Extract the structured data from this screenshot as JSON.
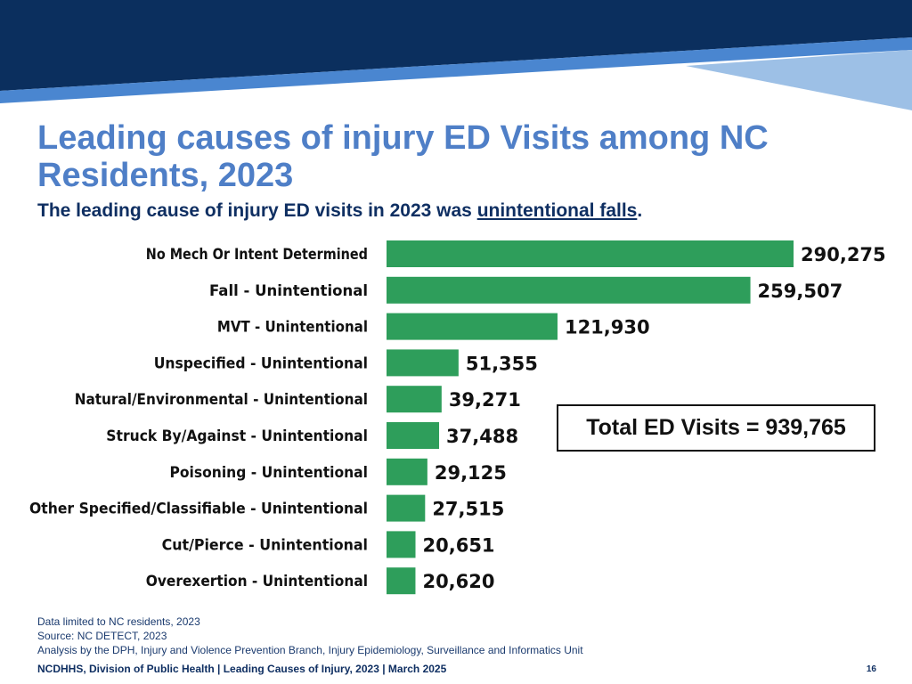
{
  "slide": {
    "title": "Leading causes of injury ED Visits among NC Residents, 2023",
    "subtitle_prefix": "The leading cause of injury ED visits in 2023 was ",
    "subtitle_emphasis": "unintentional falls",
    "subtitle_suffix": ".",
    "total_box": "Total ED Visits = 939,765",
    "notes": [
      "Data limited to NC residents, 2023",
      "Source: NC DETECT, 2023",
      "Analysis by the DPH, Injury and Violence Prevention Branch, Injury Epidemiology, Surveillance and Informatics Unit"
    ],
    "footer": "NCDHHS, Division of Public Health | Leading Causes of Injury, 2023 | March 2025",
    "page_number": "16"
  },
  "colors": {
    "bar": "#2e9e5b",
    "banner_dark": "#0b2f5e",
    "banner_mid": "#4a86d0",
    "banner_light": "#9dc0e6",
    "title": "#4f7fc7",
    "subtitle": "#0f2f62"
  },
  "chart_data": {
    "type": "bar",
    "orientation": "horizontal",
    "categories": [
      "No Mech Or Intent Determined",
      "Fall - Unintentional",
      "MVT - Unintentional",
      "Unspecified - Unintentional",
      "Natural/Environmental - Unintentional",
      "Struck By/Against - Unintentional",
      "Poisoning - Unintentional",
      "Other Specified/Classifiable - Unintentional",
      "Cut/Pierce - Unintentional",
      "Overexertion - Unintentional"
    ],
    "values": [
      290275,
      259507,
      121930,
      51355,
      39271,
      37488,
      29125,
      27515,
      20651,
      20620
    ],
    "value_labels": [
      "290,275",
      "259,507",
      "121,930",
      "51,355",
      "39,271",
      "37,488",
      "29,125",
      "27,515",
      "20,651",
      "20,620"
    ],
    "xlim": [
      0,
      290275
    ],
    "grid": false,
    "legend": "none"
  }
}
